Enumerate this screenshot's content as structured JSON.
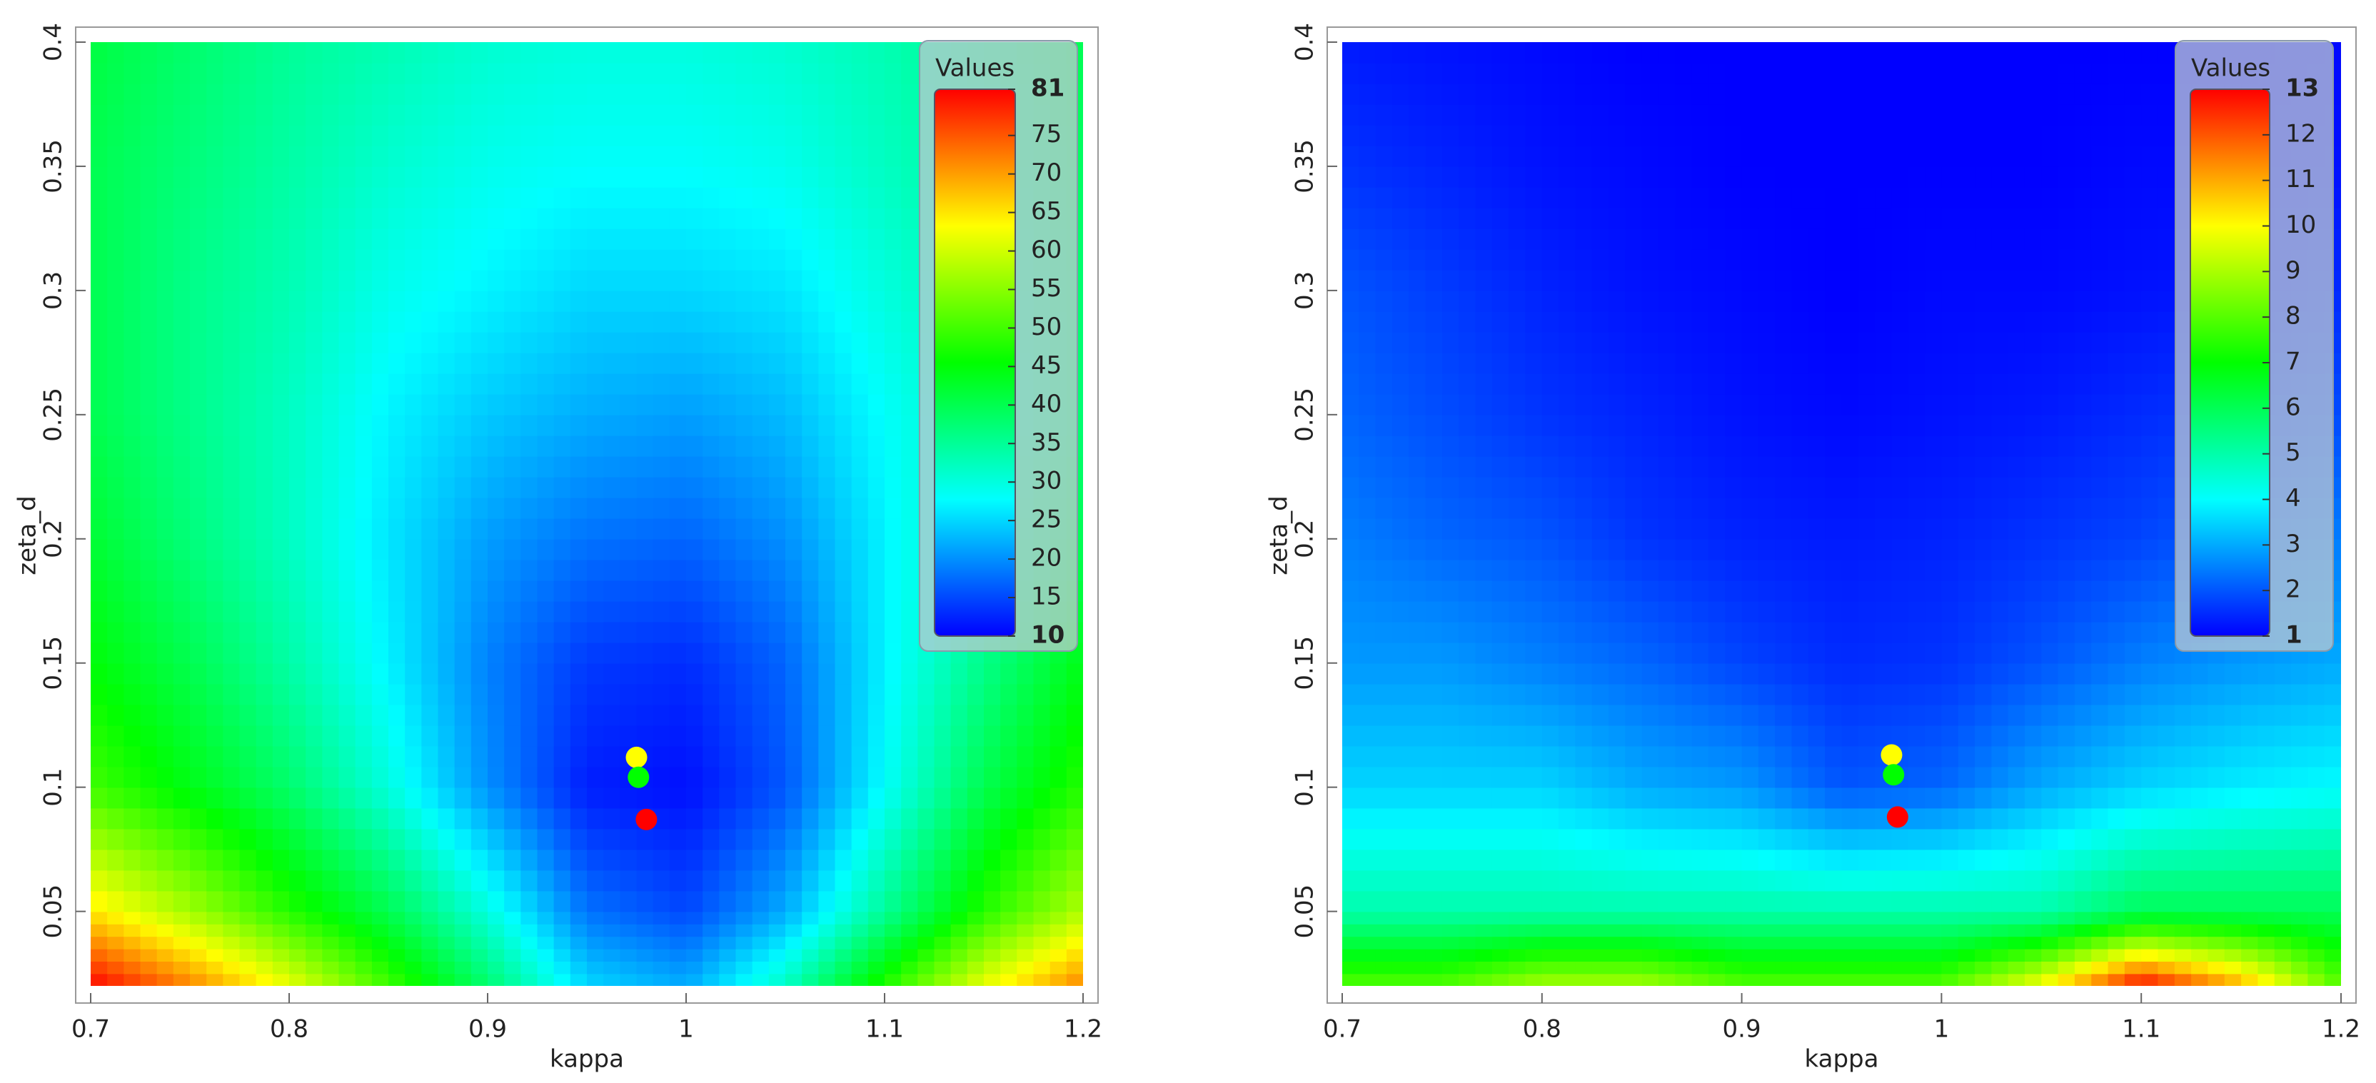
{
  "chart_data": [
    {
      "type": "heatmap",
      "xlabel": "kappa",
      "ylabel": "zeta_d",
      "legend_title": "Values",
      "xlim": [
        0.7,
        1.2
      ],
      "ylim": [
        0.02,
        0.4
      ],
      "xticks": [
        0.7,
        0.8,
        0.9,
        1,
        1.1,
        1.2
      ],
      "yticks": [
        0.05,
        0.1,
        0.15,
        0.2,
        0.25,
        0.3,
        0.35,
        0.4
      ],
      "x": [
        0.7,
        0.75,
        0.8,
        0.85,
        0.9,
        0.95,
        1,
        1.05,
        1.1,
        1.15,
        1.2
      ],
      "y": [
        0.02,
        0.05,
        0.1,
        0.15,
        0.2,
        0.25,
        0.3,
        0.35,
        0.4
      ],
      "z": [
        [
          81,
          72,
          62,
          50,
          38,
          25,
          22,
          32,
          48,
          62,
          72
        ],
        [
          65,
          57,
          48,
          40,
          30,
          18,
          15,
          22,
          35,
          48,
          58
        ],
        [
          50,
          44,
          38,
          30,
          20,
          12,
          11,
          16,
          28,
          40,
          48
        ],
        [
          45,
          40,
          34,
          27,
          19,
          14,
          13,
          17,
          27,
          36,
          44
        ],
        [
          42,
          37,
          32,
          26,
          21,
          18,
          17,
          20,
          27,
          34,
          40
        ],
        [
          40,
          36,
          32,
          27,
          24,
          22,
          21,
          23,
          28,
          33,
          38
        ],
        [
          40,
          36,
          33,
          29,
          27,
          25,
          25,
          26,
          30,
          34,
          38
        ],
        [
          40,
          37,
          34,
          31,
          29,
          28,
          28,
          29,
          32,
          35,
          39
        ],
        [
          41,
          38,
          35,
          33,
          31,
          30,
          30,
          31,
          33,
          36,
          40
        ]
      ],
      "zlim": [
        10,
        81
      ],
      "zticks": [
        10,
        15,
        20,
        25,
        30,
        35,
        40,
        45,
        50,
        55,
        60,
        65,
        70,
        75,
        81
      ],
      "colorscale": [
        "#0000ff",
        "#00ffff",
        "#00ff00",
        "#ffff00",
        "#ff0000"
      ],
      "series": [
        {
          "color": "#ffff00",
          "x": [
            0.975
          ],
          "values": [
            0.112
          ]
        },
        {
          "color": "#00ff00",
          "x": [
            0.976
          ],
          "values": [
            0.104
          ]
        },
        {
          "color": "#ff0000",
          "x": [
            0.98
          ],
          "values": [
            0.087
          ]
        }
      ]
    },
    {
      "type": "heatmap",
      "xlabel": "kappa",
      "ylabel": "zeta_d",
      "legend_title": "Values",
      "xlim": [
        0.7,
        1.2
      ],
      "ylim": [
        0.02,
        0.4
      ],
      "xticks": [
        0.7,
        0.8,
        0.9,
        1,
        1.1,
        1.2
      ],
      "yticks": [
        0.05,
        0.1,
        0.15,
        0.2,
        0.25,
        0.3,
        0.35,
        0.4
      ],
      "x": [
        0.7,
        0.75,
        0.8,
        0.85,
        0.9,
        0.95,
        1,
        1.05,
        1.1,
        1.15,
        1.2
      ],
      "y": [
        0.02,
        0.05,
        0.1,
        0.15,
        0.2,
        0.25,
        0.3,
        0.35,
        0.4
      ],
      "z": [
        [
          8,
          8,
          9,
          9,
          8,
          8,
          8,
          10,
          13,
          11,
          8
        ],
        [
          5,
          5,
          5,
          5,
          5,
          5,
          5,
          5,
          6,
          6,
          6
        ],
        [
          3.5,
          3.5,
          3.5,
          3,
          2.8,
          2,
          2.2,
          3,
          3.5,
          3.8,
          4
        ],
        [
          2.8,
          2.8,
          2.5,
          2.2,
          1.8,
          1.5,
          1.6,
          2,
          2.5,
          2.8,
          3
        ],
        [
          2.5,
          2.2,
          2,
          1.6,
          1.4,
          1.3,
          1.4,
          1.6,
          1.8,
          2.2,
          2.5
        ],
        [
          2.2,
          1.9,
          1.6,
          1.4,
          1.2,
          1.1,
          1.2,
          1.3,
          1.5,
          1.7,
          1.9
        ],
        [
          2,
          1.7,
          1.4,
          1.2,
          1.1,
          1,
          1.1,
          1.1,
          1.2,
          1.3,
          1.5
        ],
        [
          1.6,
          1.4,
          1.2,
          1.1,
          1,
          1,
          1,
          1,
          1.1,
          1.1,
          1.2
        ],
        [
          1.3,
          1.2,
          1.1,
          1,
          1,
          1,
          1,
          1,
          1,
          1,
          1.1
        ]
      ],
      "zlim": [
        1,
        13
      ],
      "zticks": [
        1,
        2,
        3,
        4,
        5,
        6,
        7,
        8,
        9,
        10,
        11,
        12,
        13
      ],
      "colorscale": [
        "#0000ff",
        "#00ffff",
        "#00ff00",
        "#ffff00",
        "#ff0000"
      ],
      "series": [
        {
          "color": "#ffff00",
          "x": [
            0.975
          ],
          "values": [
            0.113
          ]
        },
        {
          "color": "#00ff00",
          "x": [
            0.976
          ],
          "values": [
            0.105
          ]
        },
        {
          "color": "#ff0000",
          "x": [
            0.978
          ],
          "values": [
            0.088
          ]
        }
      ]
    }
  ]
}
